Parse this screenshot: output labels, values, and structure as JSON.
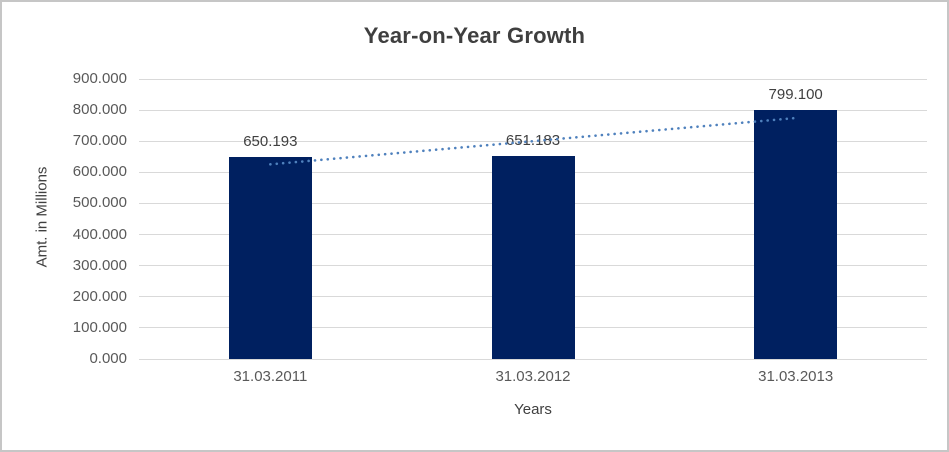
{
  "chart": {
    "title": "Year-on-Year Growth",
    "y_axis_title": "Amt. in Millions",
    "x_axis_title": "Years"
  },
  "chart_data": {
    "type": "bar",
    "title": "Year-on-Year Growth",
    "xlabel": "Years",
    "ylabel": "Amt. in Millions",
    "categories": [
      "31.03.2011",
      "31.03.2012",
      "31.03.2013"
    ],
    "values": [
      650.193,
      651.183,
      799.1
    ],
    "data_labels": [
      "650.193",
      "651.183",
      "799.100"
    ],
    "y_tick_labels": [
      "0.000",
      "100.000",
      "200.000",
      "300.000",
      "400.000",
      "500.000",
      "600.000",
      "700.000",
      "800.000",
      "900.000"
    ],
    "y_tick_step": 100,
    "ylim": [
      0,
      900
    ],
    "grid": true,
    "legend": "none",
    "trendline": {
      "type": "linear",
      "style": "dotted",
      "start_value": 625.7,
      "end_value": 774.6
    },
    "colors": {
      "bar": "#002060",
      "trendline": "#4f81bd",
      "gridline": "#d9d9d9",
      "title_text": "#3f3f3f",
      "axis_text": "#595959",
      "data_label_text": "#404040"
    }
  }
}
